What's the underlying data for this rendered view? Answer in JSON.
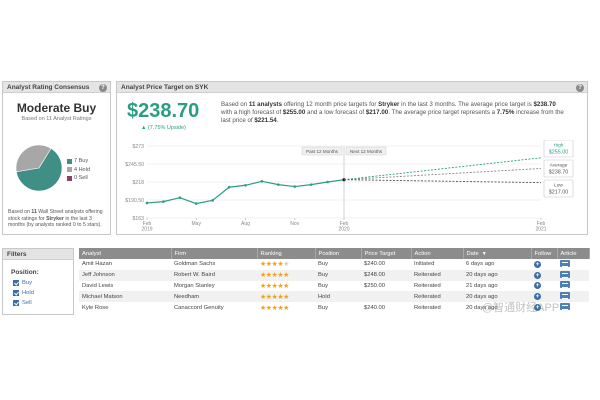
{
  "consensus": {
    "header": "Analyst Rating Consensus",
    "rating": "Moderate Buy",
    "based_on": "Based on 11 Analyst Ratings",
    "legend": [
      {
        "label": "7 Buy",
        "count": 7,
        "color": "#3f8f86"
      },
      {
        "label": "4 Hold",
        "count": 4,
        "color": "#a7a7a7"
      },
      {
        "label": "0 Sell",
        "count": 0,
        "color": "#8e3f68"
      }
    ],
    "footnote_parts": [
      "Based on ",
      "11",
      " Wall Street analysts offering stock ratings for ",
      "Stryker",
      " in the last 3 months (by analysts ranked 0 to 5 stars)."
    ]
  },
  "target": {
    "header": "Analyst Price Target on SYK",
    "price": "$238.70",
    "upside": "▲ (7.75% Upside)",
    "desc": {
      "p1": "Based on ",
      "analysts": "11 analysts",
      "p2": " offering 12 month price targets for ",
      "company": "Stryker",
      "p3": " in the last 3 months. The average price target is ",
      "avg": "$238.70",
      "p4": " with a high forecast of ",
      "high": "$255.00",
      "p5": " and a low forecast of ",
      "low": "$217.00",
      "p6": ". The average price target represents a ",
      "pct": "7.75%",
      "p7": " increase from the last price of ",
      "last": "$221.54",
      "p8": "."
    }
  },
  "chart_data": {
    "type": "line",
    "y_ticks": [
      "$273",
      "$245.50",
      "$218",
      "$190.50",
      "$163"
    ],
    "y_values": [
      273,
      245.5,
      218,
      190.5,
      163
    ],
    "ylim": [
      163,
      273
    ],
    "x_ticks": [
      {
        "label": [
          "Feb",
          "2019"
        ],
        "t": 0
      },
      {
        "label": [
          "May"
        ],
        "t": 3
      },
      {
        "label": [
          "Aug"
        ],
        "t": 6
      },
      {
        "label": [
          "Nov"
        ],
        "t": 9
      },
      {
        "label": [
          "Feb",
          "2020"
        ],
        "t": 12
      },
      {
        "label": [
          "Feb",
          "2021"
        ],
        "t": 24
      }
    ],
    "xlim": [
      0,
      24
    ],
    "series": [
      {
        "x": [
          0,
          1,
          2,
          3,
          4,
          5,
          6,
          7,
          8,
          9,
          10,
          11,
          12
        ],
        "y": [
          186,
          188,
          194,
          185,
          190,
          210,
          213,
          219,
          214,
          211,
          214,
          218,
          221.5
        ]
      }
    ],
    "forecast": {
      "start": [
        12,
        221.54
      ],
      "end_x": 24,
      "high": 255,
      "average": 238.7,
      "low": 217
    },
    "period_labels": [
      "Past 12 Months",
      "Next 12 Months"
    ],
    "callouts": [
      {
        "name": "High",
        "value": "$255.00",
        "color": "#2a9d83"
      },
      {
        "name": "Average",
        "value": "$238.70",
        "color": "#555555"
      },
      {
        "name": "Low",
        "value": "$217.00",
        "color": "#555555"
      }
    ],
    "colors": {
      "line": "#2a9d83",
      "high": "#2a9d83",
      "average": "#888888",
      "low": "#555555"
    },
    "grid": true
  },
  "filters": {
    "header": "Filters",
    "position_label": "Position:",
    "options": [
      "Buy",
      "Hold",
      "Sell"
    ]
  },
  "table": {
    "columns": [
      "Analyst",
      "Firm",
      "Ranking",
      "Position",
      "Price Target",
      "Action",
      "Date",
      "Follow",
      "Article"
    ],
    "rows": [
      {
        "analyst": "Amit Hazan",
        "firm": "Goldman Sachs",
        "stars": 4,
        "position": "Buy",
        "target": "$240.00",
        "action": "Initiated",
        "date": "6 days ago"
      },
      {
        "analyst": "Jeff Johnson",
        "firm": "Robert W. Baird",
        "stars": 5,
        "position": "Buy",
        "target": "$248.00",
        "action": "Reiterated",
        "date": "20 days ago"
      },
      {
        "analyst": "David Lewis",
        "firm": "Morgan Stanley",
        "stars": 5,
        "position": "Buy",
        "target": "$250.00",
        "action": "Reiterated",
        "date": "21 days ago"
      },
      {
        "analyst": "Michael Matson",
        "firm": "Needham",
        "stars": 5,
        "position": "Hold",
        "target": "",
        "action": "Reiterated",
        "date": "20 days ago"
      },
      {
        "analyst": "Kyle Rose",
        "firm": "Canaccord Genuity",
        "stars": 5,
        "position": "Buy",
        "target": "$240.00",
        "action": "Reiterated",
        "date": "20 days ago"
      }
    ]
  },
  "watermark": "@智通财经APP",
  "icons": {
    "help": "?",
    "follow": "+",
    "sort": "▼"
  }
}
